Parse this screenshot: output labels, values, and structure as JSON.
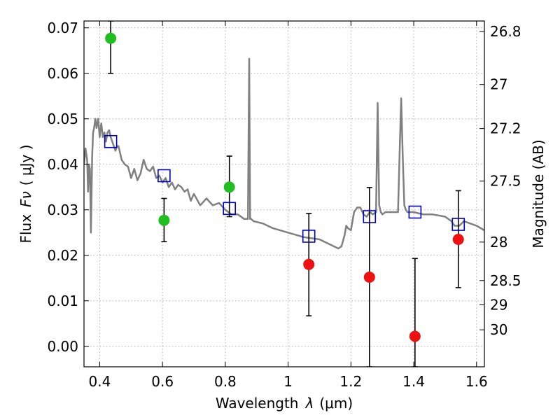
{
  "chart_data": {
    "type": "scatter",
    "xlabel_prefix": "Wavelength",
    "xlabel_symbol": "λ",
    "xlabel_unit": "(μm)",
    "ylabel_prefix": "Flux",
    "ylabel_symbol": "Fν",
    "ylabel_unit": "( μJy )",
    "y2label": "Magnitude (AB)",
    "xlim": [
      0.35,
      1.625
    ],
    "ylim": [
      -0.0045,
      0.0715
    ],
    "x_ticks": [
      0.4,
      0.6,
      0.8,
      1.0,
      1.2,
      1.4,
      1.6
    ],
    "x_tick_labels": [
      "0.4",
      "0.6",
      "0.8",
      "1",
      "1.2",
      "1.4",
      "1.6"
    ],
    "y_ticks": [
      0.0,
      0.01,
      0.02,
      0.03,
      0.04,
      0.05,
      0.06,
      0.07
    ],
    "y_tick_labels": [
      "0.00",
      "0.01",
      "0.02",
      "0.03",
      "0.04",
      "0.05",
      "0.06",
      "0.07"
    ],
    "y2_ticks": [
      26.8,
      27,
      27.2,
      27.5,
      28,
      28.5,
      29,
      30
    ],
    "y2_tick_labels": [
      "26.8",
      "27",
      "27.2",
      "27.5",
      "28",
      "28.5",
      "29",
      "30"
    ],
    "grid": true,
    "colors": {
      "model_line": "#808080",
      "green_points": "#1fbf1f",
      "red_points": "#ee1111",
      "model_squares": "#0000cc",
      "errorbar": "#000000",
      "grid": "#b0b0b0"
    },
    "series": [
      {
        "kind": "line",
        "color": "#808080",
        "x": [
          0.35,
          0.355,
          0.36,
          0.363,
          0.366,
          0.369,
          0.372,
          0.376,
          0.379,
          0.382,
          0.386,
          0.39,
          0.395,
          0.4,
          0.405,
          0.41,
          0.415,
          0.42,
          0.425,
          0.43,
          0.435,
          0.44,
          0.445,
          0.45,
          0.455,
          0.46,
          0.47,
          0.48,
          0.49,
          0.5,
          0.51,
          0.52,
          0.53,
          0.54,
          0.55,
          0.56,
          0.57,
          0.58,
          0.59,
          0.6,
          0.61,
          0.62,
          0.63,
          0.64,
          0.65,
          0.66,
          0.67,
          0.68,
          0.69,
          0.7,
          0.72,
          0.74,
          0.76,
          0.78,
          0.8,
          0.82,
          0.84,
          0.86,
          0.872,
          0.876,
          0.879,
          0.882,
          0.89,
          0.92,
          0.95,
          1.0,
          1.05,
          1.1,
          1.13,
          1.16,
          1.17,
          1.18,
          1.185,
          1.19,
          1.2,
          1.21,
          1.22,
          1.23,
          1.24,
          1.25,
          1.26,
          1.27,
          1.28,
          1.285,
          1.29,
          1.295,
          1.3,
          1.31,
          1.33,
          1.35,
          1.355,
          1.36,
          1.365,
          1.37,
          1.375,
          1.38,
          1.4,
          1.43,
          1.46,
          1.5,
          1.52,
          1.53,
          1.545,
          1.56,
          1.58,
          1.6,
          1.625
        ],
        "y": [
          0.04,
          0.0435,
          0.041,
          0.034,
          0.04,
          0.039,
          0.025,
          0.042,
          0.047,
          0.048,
          0.05,
          0.048,
          0.05,
          0.046,
          0.049,
          0.046,
          0.047,
          0.045,
          0.047,
          0.0475,
          0.046,
          0.045,
          0.044,
          0.043,
          0.044,
          0.044,
          0.041,
          0.04,
          0.0395,
          0.037,
          0.039,
          0.0365,
          0.038,
          0.041,
          0.039,
          0.0385,
          0.0395,
          0.037,
          0.0375,
          0.036,
          0.037,
          0.035,
          0.036,
          0.0345,
          0.0355,
          0.035,
          0.034,
          0.0345,
          0.032,
          0.0335,
          0.031,
          0.0325,
          0.031,
          0.0315,
          0.03,
          0.029,
          0.029,
          0.028,
          0.028,
          0.0632,
          0.028,
          0.028,
          0.0275,
          0.027,
          0.026,
          0.025,
          0.024,
          0.0235,
          0.0225,
          0.0215,
          0.022,
          0.0245,
          0.0265,
          0.026,
          0.0255,
          0.0295,
          0.0305,
          0.0305,
          0.029,
          0.0285,
          0.0295,
          0.029,
          0.0295,
          0.0535,
          0.031,
          0.0295,
          0.029,
          0.0295,
          0.0295,
          0.0295,
          0.0425,
          0.0545,
          0.0415,
          0.031,
          0.03,
          0.0295,
          0.0295,
          0.029,
          0.029,
          0.0285,
          0.0275,
          0.0265,
          0.0265,
          0.0275,
          0.027,
          0.0265,
          0.0255
        ]
      },
      {
        "kind": "squares",
        "color": "#0000cc",
        "x": [
          0.435,
          0.605,
          0.813,
          1.066,
          1.259,
          1.404,
          1.542
        ],
        "y": [
          0.045,
          0.0375,
          0.0303,
          0.0242,
          0.0285,
          0.0295,
          0.0268
        ]
      },
      {
        "kind": "points",
        "color": "#1fbf1f",
        "x": [
          0.435,
          0.605,
          0.813
        ],
        "y": [
          0.0677,
          0.0277,
          0.035
        ],
        "yerr_low": [
          0.06,
          0.023,
          0.0285
        ],
        "yerr_high": [
          0.0715,
          0.0325,
          0.0418
        ]
      },
      {
        "kind": "points",
        "color": "#ee1111",
        "x": [
          1.066,
          1.259,
          1.404,
          1.542
        ],
        "y": [
          0.018,
          0.0152,
          0.0022,
          0.0235
        ],
        "yerr_low": [
          0.0067,
          -0.0045,
          -0.0045,
          0.0129
        ],
        "yerr_high": [
          0.0292,
          0.0349,
          0.0193,
          0.0342
        ]
      }
    ]
  }
}
